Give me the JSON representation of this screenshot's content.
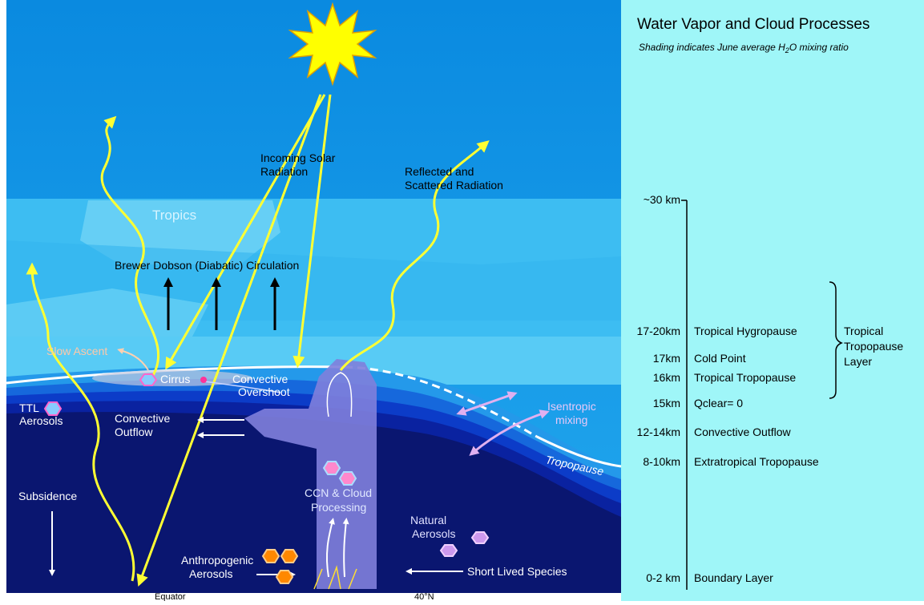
{
  "header": {
    "title": "Water Vapor and Cloud Processes",
    "subtitle": {
      "text": "Shading indicates June average H",
      "subscript": "2",
      "rest": "O mixing ratio"
    }
  },
  "diagram": {
    "incoming_solar_radiation": [
      "Incoming Solar",
      "Radiation"
    ],
    "reflected_radiation": [
      "Reflected and",
      "Scattered Radiation"
    ],
    "tropics": "Tropics",
    "circulation": "Brewer Dobson (Diabatic) Circulation",
    "slow_ascent": "Slow Ascent",
    "cirrus": "Cirrus",
    "convective_overshoot": [
      "Convective",
      "Overshoot"
    ],
    "ttl_aerosols": [
      "TTL",
      "Aerosols"
    ],
    "convective_outflow": [
      "Convective",
      "Outflow"
    ],
    "isentropic_mixing": [
      "Isentropic",
      "mixing"
    ],
    "tropopause": "Tropopause",
    "subsidence": "Subsidence",
    "ccn": [
      "CCN & Cloud",
      "Processing"
    ],
    "natural_aerosols": [
      "Natural",
      "Aerosols"
    ],
    "anthropogenic_aerosols": [
      "Anthropogenic",
      "Aerosols"
    ],
    "short_lived_species": "Short Lived Species"
  },
  "latitudes": [
    "Equator",
    "40°N"
  ],
  "altitude_scale": {
    "levels": [
      {
        "altitude": "~30 km"
      },
      {
        "altitude": "17-20km",
        "name": "Tropical Hygropause"
      },
      {
        "altitude": "17km",
        "name": "Cold Point"
      },
      {
        "altitude": "16km",
        "name": "Tropical Tropopause"
      },
      {
        "altitude": "15km",
        "name": "Qclear= 0"
      },
      {
        "altitude": "12-14km",
        "name": "Convective  Outflow"
      },
      {
        "altitude": "8-10km",
        "name": "Extratropical Tropopause"
      },
      {
        "altitude": "0-2 km",
        "name": "Boundary Layer"
      }
    ],
    "layer_bracket": [
      "Tropical",
      "Tropopause",
      "Layer"
    ]
  }
}
